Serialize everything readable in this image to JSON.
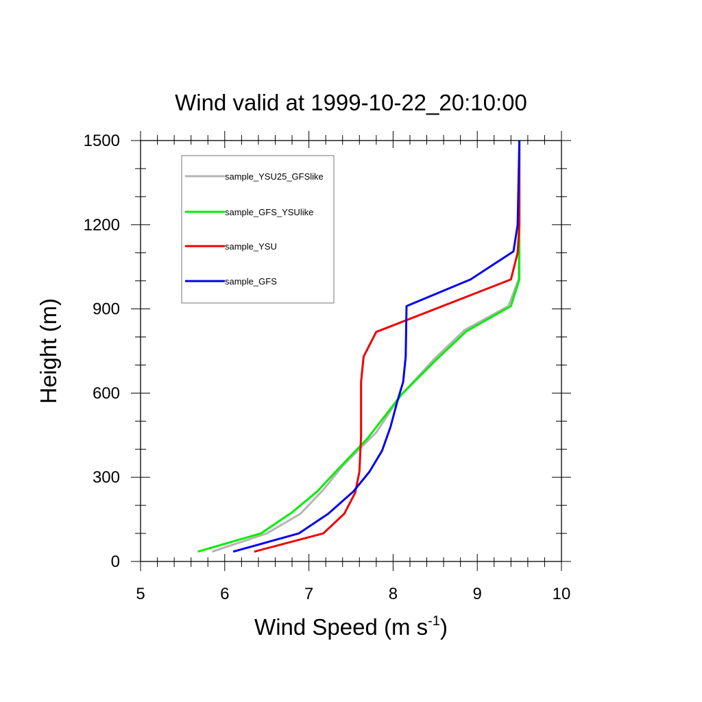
{
  "chart_data": {
    "type": "line",
    "title": "Wind valid at 1999-10-22_20:10:00",
    "xlabel": "Wind Speed (m s",
    "xlabel_sup": "-1",
    "xlabel_end": ")",
    "ylabel": "Height (m)",
    "xlim": [
      5,
      10
    ],
    "ylim": [
      0,
      1500
    ],
    "xticks": [
      "5",
      "6",
      "7",
      "8",
      "9",
      "10"
    ],
    "yticks": [
      "0",
      "300",
      "600",
      "900",
      "1200",
      "1500"
    ],
    "legend_position": "top-left",
    "series": [
      {
        "name": "sample_YSU25_GFSlike",
        "color": "#b4b4b4",
        "points": [
          [
            5.85,
            35
          ],
          [
            6.5,
            100
          ],
          [
            6.9,
            170
          ],
          [
            7.17,
            255
          ],
          [
            7.4,
            340
          ],
          [
            7.8,
            460
          ],
          [
            8.1,
            595
          ],
          [
            8.5,
            725
          ],
          [
            8.85,
            825
          ],
          [
            9.37,
            910
          ],
          [
            9.49,
            1005
          ],
          [
            9.5,
            1200
          ],
          [
            9.5,
            1500
          ]
        ]
      },
      {
        "name": "sample_GFS_YSUlike",
        "color": "#00ee00",
        "points": [
          [
            5.68,
            35
          ],
          [
            6.43,
            100
          ],
          [
            6.8,
            175
          ],
          [
            7.1,
            250
          ],
          [
            7.35,
            330
          ],
          [
            7.7,
            440
          ],
          [
            8.1,
            595
          ],
          [
            8.5,
            715
          ],
          [
            8.87,
            820
          ],
          [
            9.4,
            910
          ],
          [
            9.5,
            1005
          ],
          [
            9.5,
            1200
          ],
          [
            9.5,
            1500
          ]
        ]
      },
      {
        "name": "sample_YSU",
        "color": "#ee0000",
        "points": [
          [
            6.35,
            35
          ],
          [
            7.17,
            100
          ],
          [
            7.42,
            170
          ],
          [
            7.55,
            245
          ],
          [
            7.6,
            320
          ],
          [
            7.62,
            450
          ],
          [
            7.62,
            640
          ],
          [
            7.65,
            730
          ],
          [
            7.8,
            818
          ],
          [
            9.4,
            1005
          ],
          [
            9.48,
            1100
          ],
          [
            9.5,
            1200
          ],
          [
            9.5,
            1500
          ]
        ]
      },
      {
        "name": "sample_GFS",
        "color": "#0000ee",
        "points": [
          [
            6.1,
            35
          ],
          [
            6.88,
            100
          ],
          [
            7.23,
            170
          ],
          [
            7.53,
            250
          ],
          [
            7.72,
            320
          ],
          [
            7.87,
            395
          ],
          [
            7.97,
            480
          ],
          [
            8.05,
            570
          ],
          [
            8.12,
            640
          ],
          [
            8.15,
            730
          ],
          [
            8.16,
            910
          ],
          [
            8.92,
            1005
          ],
          [
            9.43,
            1105
          ],
          [
            9.48,
            1200
          ],
          [
            9.5,
            1500
          ]
        ]
      }
    ]
  }
}
